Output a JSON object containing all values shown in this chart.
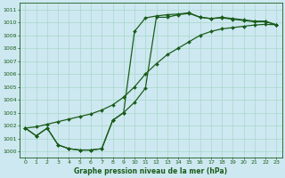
{
  "title": "Graphe pression niveau de la mer (hPa)",
  "bg_color": "#cde8f0",
  "line_color": "#1a5c1a",
  "grid_color": "#a8d8c8",
  "xlim": [
    -0.5,
    23.5
  ],
  "ylim": [
    999.5,
    1011.5
  ],
  "x_ticks": [
    0,
    1,
    2,
    3,
    4,
    5,
    6,
    7,
    8,
    9,
    10,
    11,
    12,
    13,
    14,
    15,
    16,
    17,
    18,
    19,
    20,
    21,
    22,
    23
  ],
  "y_ticks": [
    1000,
    1001,
    1002,
    1003,
    1004,
    1005,
    1006,
    1007,
    1008,
    1009,
    1010,
    1011
  ],
  "s1_x": [
    0,
    1,
    2,
    3,
    4,
    5,
    6,
    7,
    8,
    9,
    10,
    11,
    12,
    13,
    14,
    15,
    16,
    17,
    18,
    19,
    20,
    21,
    22,
    23
  ],
  "s1_y": [
    1001.8,
    1001.2,
    1001.8,
    1000.5,
    1000.2,
    1000.1,
    1000.1,
    1000.2,
    1002.4,
    1003.0,
    1003.8,
    1004.9,
    1010.4,
    1010.4,
    1010.6,
    1010.7,
    1010.4,
    1010.3,
    1010.4,
    1010.3,
    1010.2,
    1010.1,
    1010.1,
    1009.8
  ],
  "s2_x": [
    0,
    1,
    2,
    3,
    4,
    5,
    6,
    7,
    8,
    9,
    10,
    11,
    12,
    13,
    14,
    15,
    16,
    17,
    18,
    19,
    20,
    21,
    22,
    23
  ],
  "s2_y": [
    1001.8,
    1001.2,
    1001.8,
    1000.5,
    1000.2,
    1000.1,
    1000.1,
    1000.2,
    1002.4,
    1003.0,
    1009.3,
    1010.35,
    1010.5,
    1010.6,
    1010.65,
    1010.75,
    1010.4,
    1010.3,
    1010.35,
    1010.25,
    1010.15,
    1010.05,
    1010.05,
    1009.82
  ],
  "s3_x": [
    0,
    1,
    2,
    3,
    4,
    5,
    6,
    7,
    8,
    9,
    10,
    11,
    12,
    13,
    14,
    15,
    16,
    17,
    18,
    19,
    20,
    21,
    22,
    23
  ],
  "s3_y": [
    1001.8,
    1001.9,
    1002.1,
    1002.3,
    1002.5,
    1002.7,
    1002.9,
    1003.2,
    1003.6,
    1004.2,
    1005.0,
    1006.0,
    1006.8,
    1007.5,
    1008.0,
    1008.5,
    1009.0,
    1009.3,
    1009.5,
    1009.6,
    1009.7,
    1009.8,
    1009.85,
    1009.82
  ]
}
